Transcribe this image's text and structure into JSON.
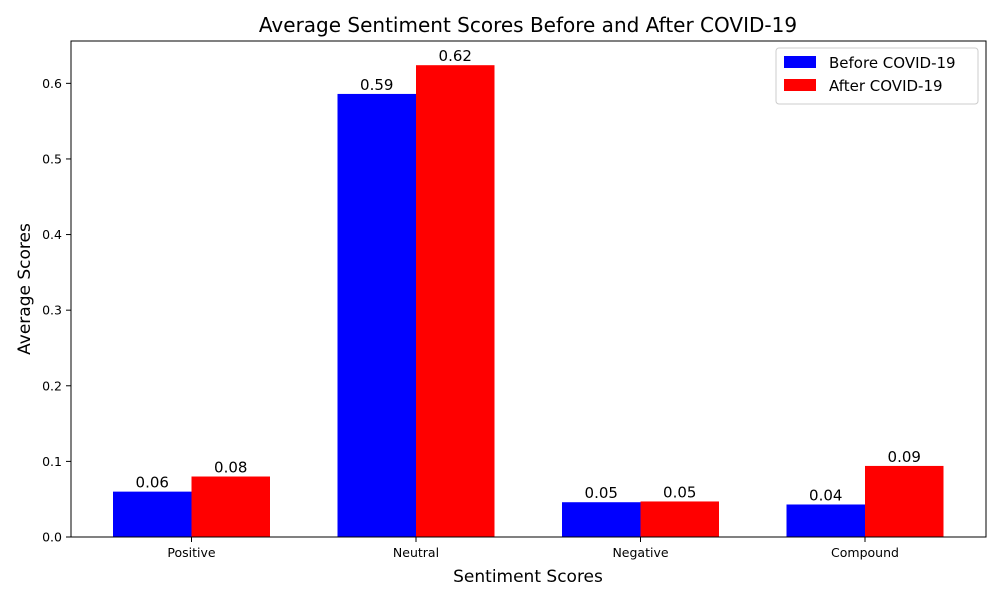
{
  "chart_data": {
    "type": "bar",
    "title": "Average Sentiment Scores Before and After COVID-19",
    "xlabel": "Sentiment Scores",
    "ylabel": "Average Scores",
    "categories": [
      "Positive",
      "Neutral",
      "Negative",
      "Compound"
    ],
    "series": [
      {
        "name": "Before COVID-19",
        "color": "#0000ff",
        "values": [
          0.06,
          0.586,
          0.046,
          0.043
        ],
        "labels": [
          "0.06",
          "0.59",
          "0.05",
          "0.04"
        ]
      },
      {
        "name": "After COVID-19",
        "color": "#ff0000",
        "values": [
          0.08,
          0.624,
          0.047,
          0.094
        ],
        "labels": [
          "0.08",
          "0.62",
          "0.05",
          "0.09"
        ]
      }
    ],
    "ylim": [
      0,
      0.656
    ],
    "yticks": [
      "0.0",
      "0.1",
      "0.2",
      "0.3",
      "0.4",
      "0.5",
      "0.6"
    ],
    "grid": false,
    "legend_position": "top-right"
  }
}
